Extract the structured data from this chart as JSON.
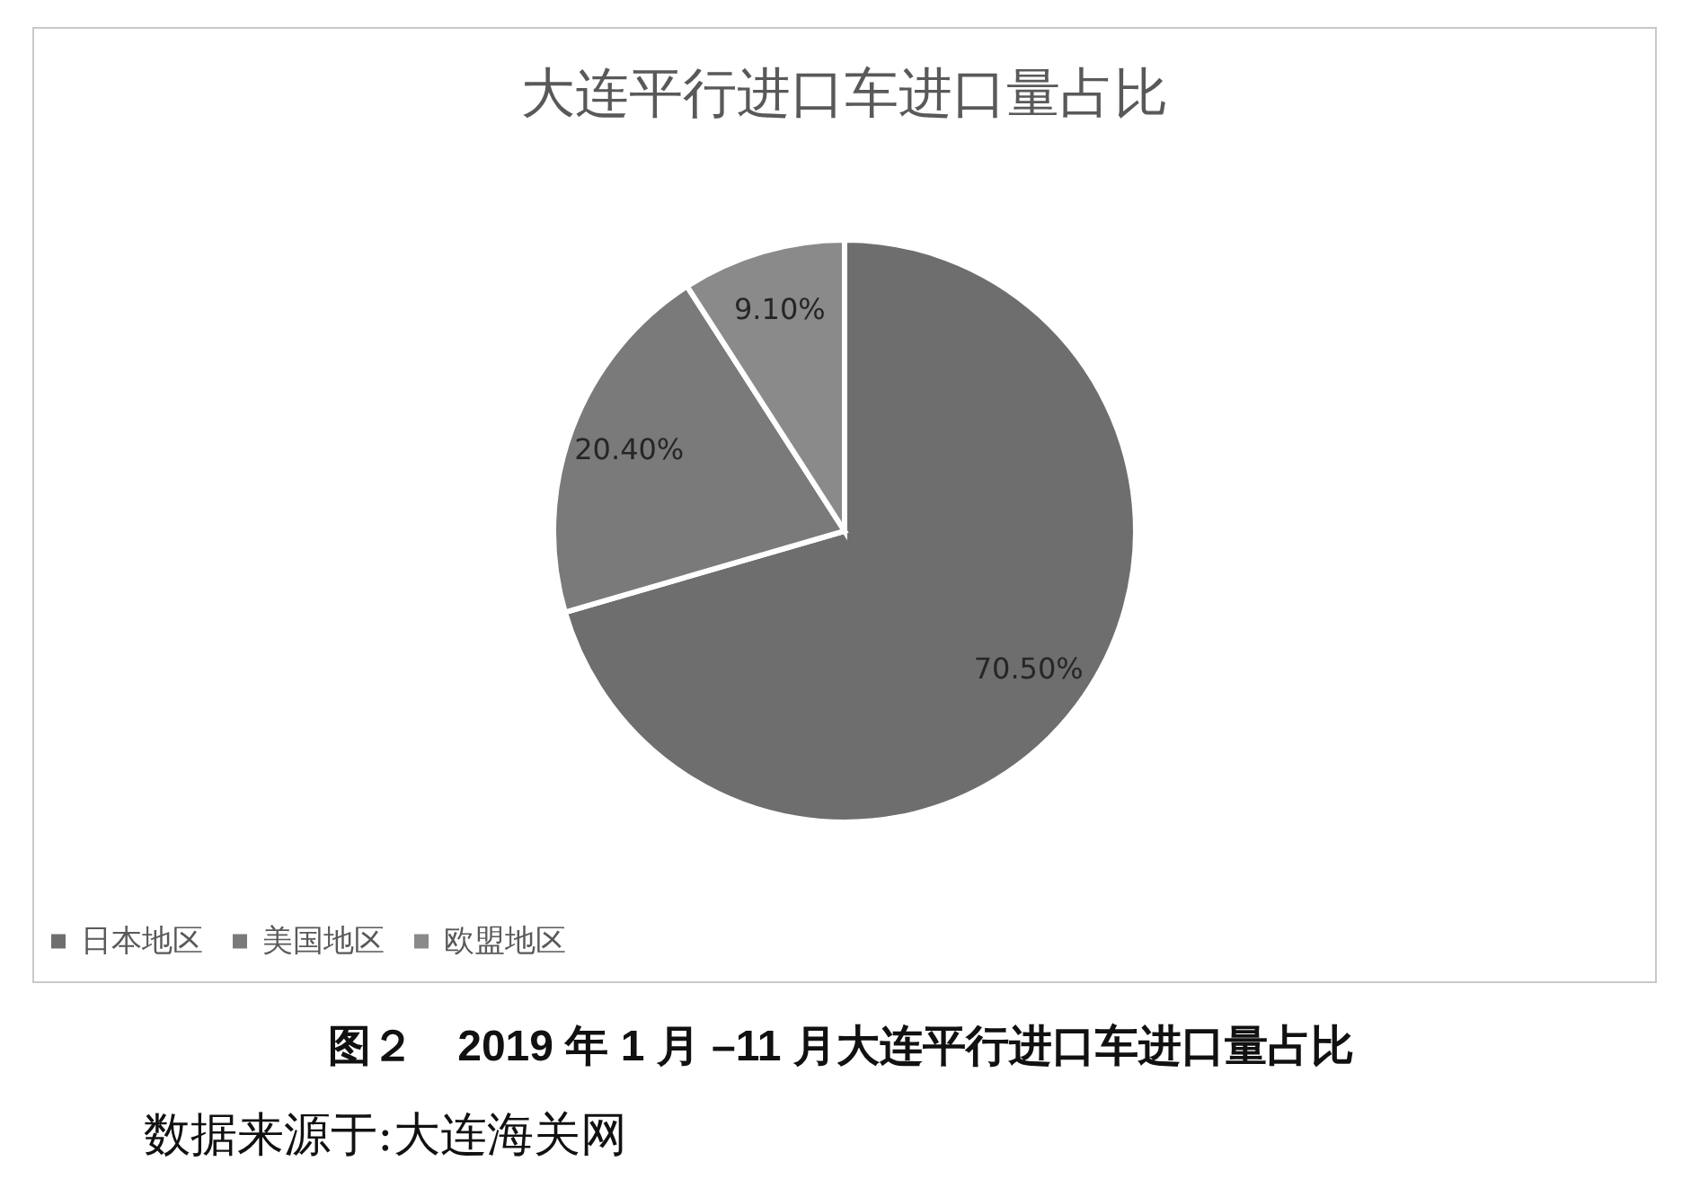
{
  "chart_data": {
    "type": "pie",
    "title": "大连平行进口车进口量占比",
    "categories": [
      "日本地区",
      "美国地区",
      "欧盟地区"
    ],
    "values": [
      70.5,
      20.4,
      9.1
    ],
    "colors": [
      "#6e6e6e",
      "#7a7a7a",
      "#8a8a8a"
    ],
    "value_labels": [
      "70.50%",
      "20.40%",
      "9.10%"
    ],
    "legend": "bottom",
    "annotations": [
      "图２　2019 年 1 月 –11 月大连平行进口车进口量占比",
      "数据来源于:大连海关网"
    ]
  }
}
